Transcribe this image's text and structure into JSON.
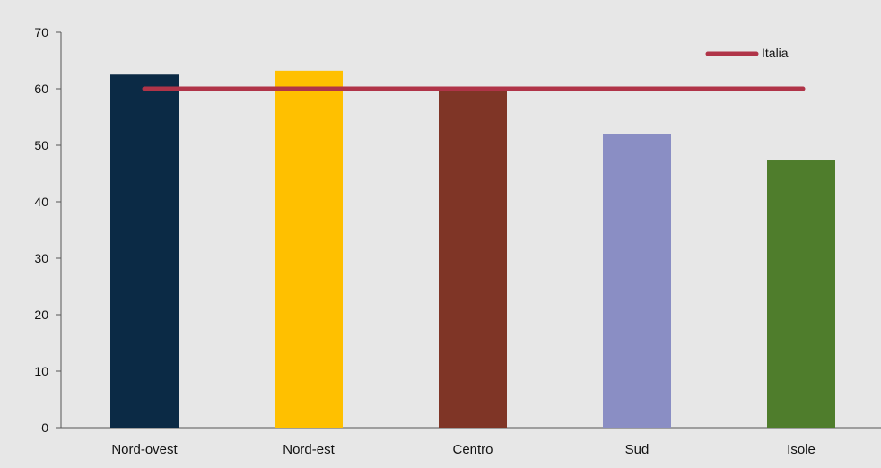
{
  "chart_data": {
    "type": "bar",
    "title": "",
    "xlabel": "",
    "ylabel": "",
    "categories": [
      "Nord-ovest",
      "Nord-est",
      "Centro",
      "Sud",
      "Isole"
    ],
    "values": [
      62.5,
      63.2,
      60.3,
      52.0,
      47.3
    ],
    "bar_colors": [
      "#0b2a45",
      "#ffc000",
      "#7f3526",
      "#8a8ec4",
      "#4f7d2c"
    ],
    "ylim": [
      0,
      70
    ],
    "yticks": [
      0,
      10,
      20,
      30,
      40,
      50,
      60,
      70
    ],
    "reference_line": {
      "name": "Italia",
      "value": 60,
      "color": "#b03448"
    },
    "background_color": "#e7e7e7",
    "grid": false,
    "legend_position": "top-right"
  }
}
